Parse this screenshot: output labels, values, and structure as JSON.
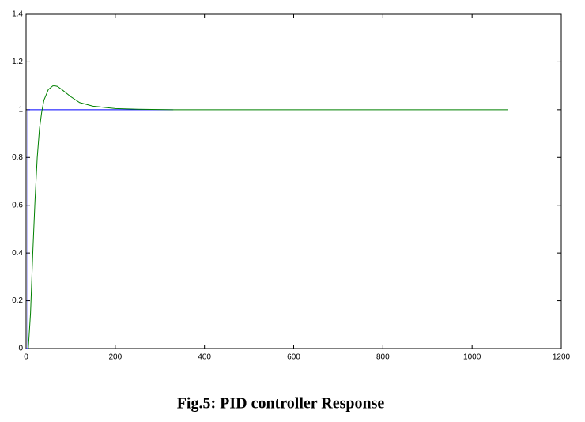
{
  "chart_data": {
    "type": "line",
    "caption": "Fig.5: PID controller Response",
    "xlim": [
      0,
      1200
    ],
    "xticks": [
      0,
      200,
      400,
      600,
      800,
      1000,
      1200
    ],
    "ylim": [
      0,
      1.4
    ],
    "yticks": [
      0,
      0.2,
      0.4,
      0.6,
      0.8,
      1,
      1.2,
      1.4
    ],
    "grid": false,
    "series": [
      {
        "color": "#0000ff",
        "x": [
          0,
          4,
          4,
          330
        ],
        "values": [
          0,
          0,
          1,
          1
        ]
      },
      {
        "color": "#008000",
        "x": [
          5,
          10,
          15,
          20,
          25,
          30,
          35,
          40,
          50,
          60,
          65,
          70,
          80,
          100,
          120,
          150,
          200,
          250,
          330,
          1080
        ],
        "values": [
          0,
          0.15,
          0.4,
          0.62,
          0.8,
          0.92,
          0.99,
          1.04,
          1.085,
          1.1,
          1.1,
          1.098,
          1.085,
          1.055,
          1.03,
          1.015,
          1.005,
          1.002,
          1,
          1
        ]
      }
    ]
  }
}
